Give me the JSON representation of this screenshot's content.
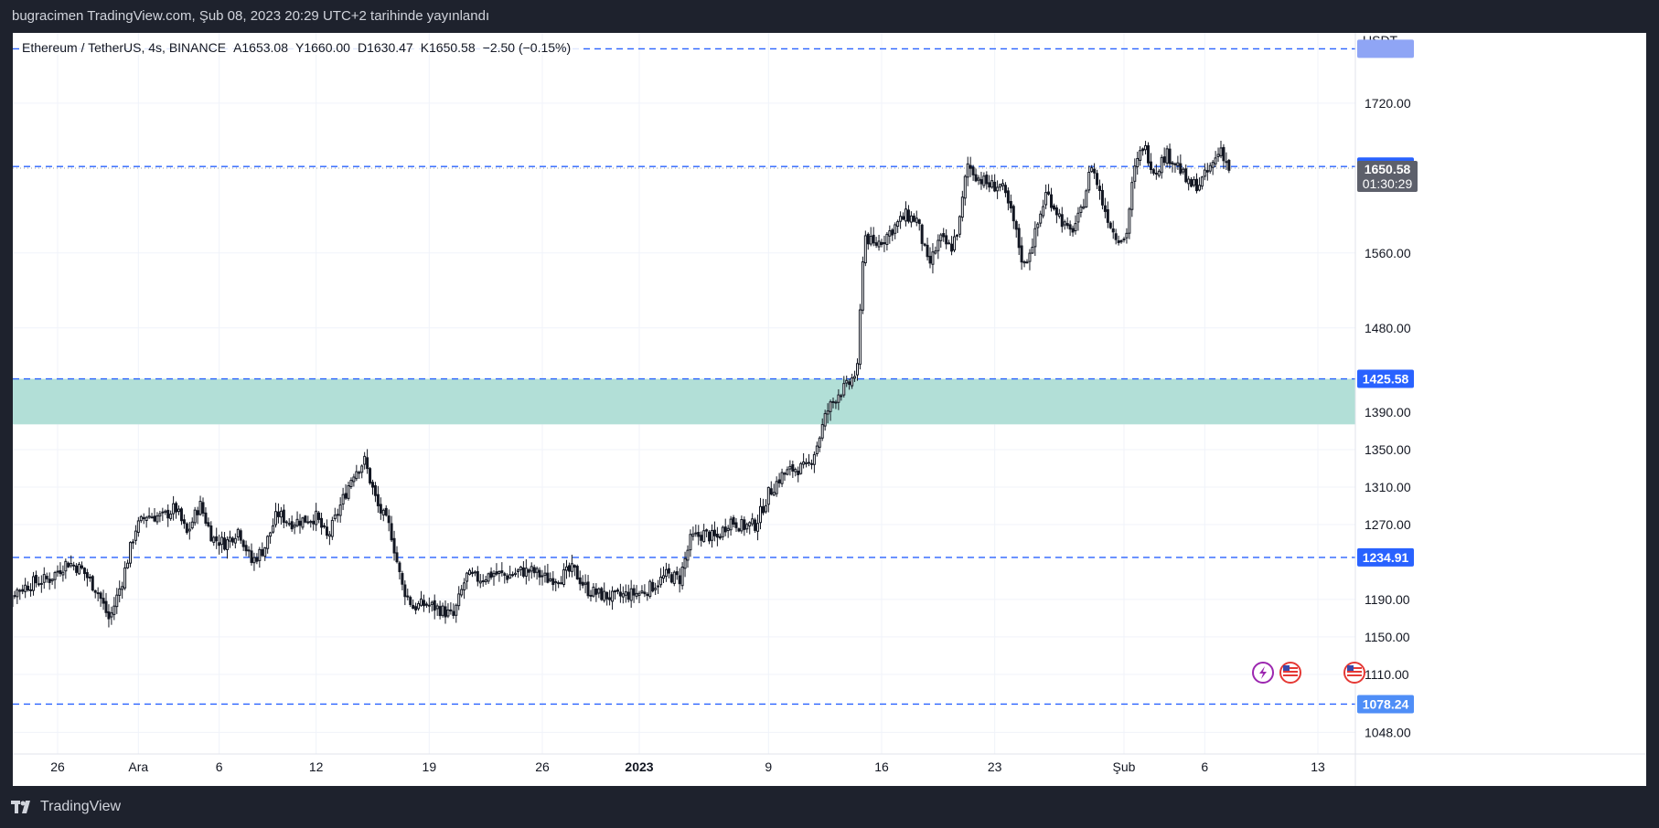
{
  "header": {
    "published_text": "bugracimen TradingView.com, Şub 08, 2023 20:29 UTC+2 tarihinde yayınlandı"
  },
  "legend": {
    "symbol": "Ethereum / TetherUS, 4s, BINANCE",
    "open": "A1653.08",
    "high": "Y1660.00",
    "low": "D1630.47",
    "close": "K1650.58",
    "change": "−2.50 (−0.15%)"
  },
  "footer": {
    "brand": "TradingView"
  },
  "colors": {
    "background": "#1e222d",
    "plot_bg": "#ffffff",
    "candle": "#131722",
    "level_line": "#2962ff",
    "zone_fill": "#b2dfd7",
    "last_price_badge": "#5d606b",
    "top_level_badge": "#8fa5f5"
  },
  "chart_data": {
    "type": "candlestick",
    "currency_label": "USDT",
    "ylim": [
      1025,
      1795
    ],
    "y_ticks": [
      {
        "value": 1720,
        "label": "1720.00"
      },
      {
        "value": 1560,
        "label": "1560.00"
      },
      {
        "value": 1480,
        "label": "1480.00"
      },
      {
        "value": 1390,
        "label": "1390.00"
      },
      {
        "value": 1350,
        "label": "1350.00"
      },
      {
        "value": 1310,
        "label": "1310.00"
      },
      {
        "value": 1270,
        "label": "1270.00"
      },
      {
        "value": 1190,
        "label": "1190.00"
      },
      {
        "value": 1150,
        "label": "1150.00"
      },
      {
        "value": 1110,
        "label": "1110.00"
      },
      {
        "value": 1048,
        "label": "1048.00"
      }
    ],
    "x_ticks": [
      {
        "day": 26,
        "label": "26",
        "bold": false
      },
      {
        "day": 31,
        "label": "Ara",
        "bold": false
      },
      {
        "day": 36,
        "label": "6",
        "bold": false
      },
      {
        "day": 42,
        "label": "12",
        "bold": false
      },
      {
        "day": 49,
        "label": "19",
        "bold": false
      },
      {
        "day": 56,
        "label": "26",
        "bold": false
      },
      {
        "day": 62,
        "label": "2023",
        "bold": true
      },
      {
        "day": 70,
        "label": "9",
        "bold": false
      },
      {
        "day": 77,
        "label": "16",
        "bold": false
      },
      {
        "day": 84,
        "label": "23",
        "bold": false
      },
      {
        "day": 92,
        "label": "Şub",
        "bold": false
      },
      {
        "day": 97,
        "label": "6",
        "bold": false
      },
      {
        "day": 104,
        "label": "13",
        "bold": false
      }
    ],
    "horizontal_levels": [
      {
        "value": 1778.0,
        "label": ""
      },
      {
        "value": 1652.31,
        "label": "1652.31"
      },
      {
        "value": 1425.58,
        "label": "1425.58"
      },
      {
        "value": 1234.91,
        "label": "1234.91"
      },
      {
        "value": 1078.24,
        "label": "1078.24"
      }
    ],
    "zone": {
      "low": 1377,
      "high": 1425.58
    },
    "last_price": {
      "value": 1650.58,
      "label": "1650.58",
      "countdown": "01:30:29"
    },
    "price_anchors": [
      [
        22.0,
        1135
      ],
      [
        22.5,
        1170
      ],
      [
        23.3,
        1198
      ],
      [
        24.5,
        1208
      ],
      [
        25.5,
        1212
      ],
      [
        26.6,
        1230
      ],
      [
        27.5,
        1222
      ],
      [
        28.5,
        1198
      ],
      [
        29.2,
        1168
      ],
      [
        30.0,
        1210
      ],
      [
        30.8,
        1265
      ],
      [
        31.5,
        1280
      ],
      [
        32.5,
        1278
      ],
      [
        33.3,
        1288
      ],
      [
        34.0,
        1260
      ],
      [
        34.8,
        1292
      ],
      [
        35.6,
        1255
      ],
      [
        36.4,
        1250
      ],
      [
        37.2,
        1265
      ],
      [
        38.0,
        1230
      ],
      [
        38.8,
        1245
      ],
      [
        39.6,
        1282
      ],
      [
        40.4,
        1272
      ],
      [
        41.2,
        1275
      ],
      [
        42.0,
        1278
      ],
      [
        42.7,
        1255
      ],
      [
        43.5,
        1290
      ],
      [
        44.3,
        1325
      ],
      [
        45.0,
        1338
      ],
      [
        45.8,
        1290
      ],
      [
        46.6,
        1265
      ],
      [
        47.3,
        1205
      ],
      [
        48.0,
        1182
      ],
      [
        48.8,
        1185
      ],
      [
        49.6,
        1180
      ],
      [
        50.5,
        1172
      ],
      [
        51.3,
        1215
      ],
      [
        52.1,
        1212
      ],
      [
        53.0,
        1218
      ],
      [
        53.8,
        1215
      ],
      [
        54.6,
        1220
      ],
      [
        55.4,
        1220
      ],
      [
        56.3,
        1212
      ],
      [
        57.1,
        1214
      ],
      [
        57.9,
        1222
      ],
      [
        58.8,
        1200
      ],
      [
        59.6,
        1195
      ],
      [
        60.4,
        1192
      ],
      [
        61.2,
        1195
      ],
      [
        62.1,
        1197
      ],
      [
        62.9,
        1205
      ],
      [
        63.7,
        1216
      ],
      [
        64.5,
        1212
      ],
      [
        65.2,
        1255
      ],
      [
        66.0,
        1260
      ],
      [
        66.8,
        1255
      ],
      [
        67.6,
        1275
      ],
      [
        68.4,
        1268
      ],
      [
        69.2,
        1270
      ],
      [
        70.0,
        1303
      ],
      [
        70.8,
        1322
      ],
      [
        71.6,
        1330
      ],
      [
        72.4,
        1330
      ],
      [
        73.0,
        1355
      ],
      [
        73.6,
        1390
      ],
      [
        74.3,
        1410
      ],
      [
        74.9,
        1418
      ],
      [
        75.5,
        1435
      ],
      [
        75.9,
        1580
      ],
      [
        76.5,
        1568
      ],
      [
        77.1,
        1575
      ],
      [
        77.8,
        1588
      ],
      [
        78.5,
        1600
      ],
      [
        79.2,
        1595
      ],
      [
        79.9,
        1545
      ],
      [
        80.6,
        1575
      ],
      [
        81.3,
        1565
      ],
      [
        81.8,
        1590
      ],
      [
        82.3,
        1655
      ],
      [
        83.0,
        1640
      ],
      [
        83.7,
        1632
      ],
      [
        84.4,
        1632
      ],
      [
        85.1,
        1598
      ],
      [
        85.8,
        1545
      ],
      [
        86.5,
        1580
      ],
      [
        87.2,
        1625
      ],
      [
        87.9,
        1603
      ],
      [
        88.6,
        1580
      ],
      [
        89.3,
        1600
      ],
      [
        90.0,
        1655
      ],
      [
        90.7,
        1612
      ],
      [
        91.4,
        1580
      ],
      [
        92.1,
        1574
      ],
      [
        92.6,
        1645
      ],
      [
        93.2,
        1676
      ],
      [
        93.9,
        1646
      ],
      [
        94.6,
        1666
      ],
      [
        95.3,
        1655
      ],
      [
        96.0,
        1632
      ],
      [
        96.7,
        1634
      ],
      [
        97.4,
        1652
      ],
      [
        98.0,
        1672
      ],
      [
        98.5,
        1650
      ]
    ]
  }
}
